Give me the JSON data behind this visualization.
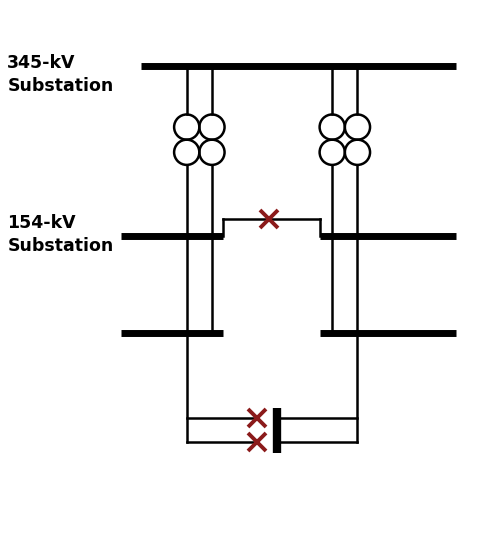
{
  "figure_width": 4.85,
  "figure_height": 5.5,
  "dpi": 100,
  "bg_color": "#ffffff",
  "line_color": "#000000",
  "thick_lw": 5,
  "thin_lw": 1.8,
  "cross_color": "#8B1a1a",
  "cross_size": 13,
  "cross_lw": 2.8,
  "label_345": "345-kV\nSubstation",
  "label_154": "154-kV\nSubstation",
  "label_fontsize": 12.5,
  "label_fontweight": "bold",
  "circle_r": 0.26
}
